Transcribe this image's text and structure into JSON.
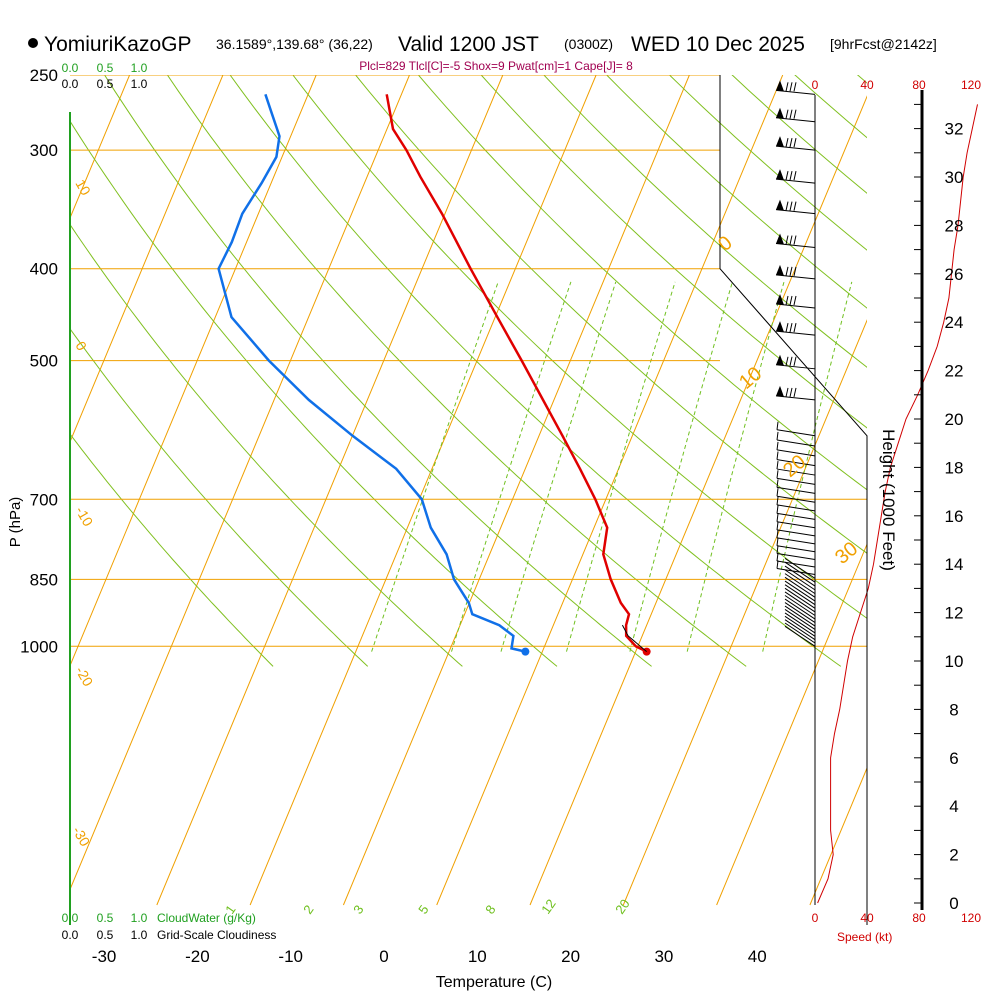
{
  "header": {
    "model": "YomiuriKazoGP",
    "location": "36.1589°,139.68° (36,22)",
    "valid": "Valid 1200 JST",
    "utc": "(0300Z)",
    "date": "WED 10 Dec 2025",
    "forecast": "[9hrFcst@2142z]",
    "indices": "Plcl=829 Tlcl[C]=-5 Shox=9 Pwat[cm]=1 Cape[J]= 8"
  },
  "colors": {
    "temperature": "#e00000",
    "dewpoint": "#1070e8",
    "isotherm": "#f0a000",
    "dry_adiabat": "#80c020",
    "mixing_ratio": "#70c020",
    "cloud": "#20a020",
    "speed": "#d00000"
  },
  "chart_data": {
    "type": "skew-t",
    "xlabel": "Temperature (C)",
    "ylabel": "P (hPa)",
    "right_label": "Height (1000 Feet)",
    "x_ticks": [
      "-30",
      "-20",
      "-10",
      "0",
      "10",
      "20",
      "30",
      "40"
    ],
    "p_ticks": [
      "250",
      "300",
      "400",
      "500",
      "700",
      "850",
      "1000"
    ],
    "height_ticks": [
      "0",
      "2",
      "4",
      "6",
      "8",
      "10",
      "12",
      "14",
      "16",
      "18",
      "20",
      "22",
      "24",
      "26",
      "28",
      "30",
      "32"
    ],
    "speed_ticks": [
      "0",
      "40",
      "80",
      "120"
    ],
    "speed_label": "Speed (kt)",
    "cloud_ticks": [
      "0.0",
      "0.5",
      "1.0"
    ],
    "cloudwater_label": "CloudWater (g/Kg)",
    "cloudiness_label": "Grid-Scale Cloudiness",
    "isotherm_labels": [
      "10",
      "0",
      "-10",
      "-20",
      "-30"
    ],
    "adiabat_labels": [
      "0",
      "10",
      "20",
      "30"
    ],
    "mixing_labels": [
      "1",
      "2",
      "3",
      "5",
      "8",
      "12",
      "20"
    ],
    "temperature": [
      {
        "p": 1013,
        "t": 12.5
      },
      {
        "p": 1000,
        "t": 11
      },
      {
        "p": 975,
        "t": 9.3
      },
      {
        "p": 950,
        "t": 8.6
      },
      {
        "p": 925,
        "t": 8.2
      },
      {
        "p": 900,
        "t": 6.6
      },
      {
        "p": 850,
        "t": 4.0
      },
      {
        "p": 800,
        "t": 1.6
      },
      {
        "p": 750,
        "t": 0.3
      },
      {
        "p": 700,
        "t": -2.8
      },
      {
        "p": 650,
        "t": -6.4
      },
      {
        "p": 600,
        "t": -10.4
      },
      {
        "p": 550,
        "t": -14.8
      },
      {
        "p": 500,
        "t": -19.6
      },
      {
        "p": 450,
        "t": -25.0
      },
      {
        "p": 400,
        "t": -31.0
      },
      {
        "p": 350,
        "t": -37.6
      },
      {
        "p": 320,
        "t": -42.3
      },
      {
        "p": 300,
        "t": -45.5
      },
      {
        "p": 285,
        "t": -48.3
      },
      {
        "p": 262,
        "t": -51.2
      }
    ],
    "dewpoint": [
      {
        "p": 1013,
        "t": -0.5
      },
      {
        "p": 1005,
        "t": -2.2
      },
      {
        "p": 975,
        "t": -2.8
      },
      {
        "p": 950,
        "t": -5.0
      },
      {
        "p": 925,
        "t": -8.6
      },
      {
        "p": 900,
        "t": -9.7
      },
      {
        "p": 850,
        "t": -12.8
      },
      {
        "p": 800,
        "t": -15.2
      },
      {
        "p": 750,
        "t": -18.6
      },
      {
        "p": 700,
        "t": -21.4
      },
      {
        "p": 650,
        "t": -26.1
      },
      {
        "p": 600,
        "t": -32.9
      },
      {
        "p": 550,
        "t": -39.9
      },
      {
        "p": 500,
        "t": -46.7
      },
      {
        "p": 450,
        "t": -53.5
      },
      {
        "p": 400,
        "t": -58.0
      },
      {
        "p": 375,
        "t": -58.3
      },
      {
        "p": 350,
        "t": -59.0
      },
      {
        "p": 325,
        "t": -58.9
      },
      {
        "p": 305,
        "t": -59.0
      },
      {
        "p": 290,
        "t": -60.0
      },
      {
        "p": 275,
        "t": -62.2
      },
      {
        "p": 262,
        "t": -64.2
      }
    ],
    "wind_speed_profile": [
      {
        "h": 0,
        "kt": 2
      },
      {
        "h": 1,
        "kt": 10
      },
      {
        "h": 2,
        "kt": 14
      },
      {
        "h": 3,
        "kt": 12
      },
      {
        "h": 4,
        "kt": 12
      },
      {
        "h": 5,
        "kt": 12
      },
      {
        "h": 6,
        "kt": 12
      },
      {
        "h": 7,
        "kt": 15
      },
      {
        "h": 8,
        "kt": 19
      },
      {
        "h": 9,
        "kt": 22
      },
      {
        "h": 10,
        "kt": 25
      },
      {
        "h": 11,
        "kt": 29
      },
      {
        "h": 12,
        "kt": 35
      },
      {
        "h": 13,
        "kt": 41
      },
      {
        "h": 14,
        "kt": 45
      },
      {
        "h": 15,
        "kt": 48
      },
      {
        "h": 16,
        "kt": 51
      },
      {
        "h": 17,
        "kt": 54
      },
      {
        "h": 18,
        "kt": 58
      },
      {
        "h": 19,
        "kt": 64
      },
      {
        "h": 20,
        "kt": 70
      },
      {
        "h": 21,
        "kt": 79
      },
      {
        "h": 22,
        "kt": 87
      },
      {
        "h": 23,
        "kt": 94
      },
      {
        "h": 24,
        "kt": 99
      },
      {
        "h": 25,
        "kt": 103
      },
      {
        "h": 26,
        "kt": 105
      },
      {
        "h": 27,
        "kt": 107
      },
      {
        "h": 28,
        "kt": 110
      },
      {
        "h": 29,
        "kt": 112
      },
      {
        "h": 30,
        "kt": 114
      },
      {
        "h": 31,
        "kt": 117
      },
      {
        "h": 32,
        "kt": 121
      },
      {
        "h": 33,
        "kt": 125
      }
    ]
  }
}
